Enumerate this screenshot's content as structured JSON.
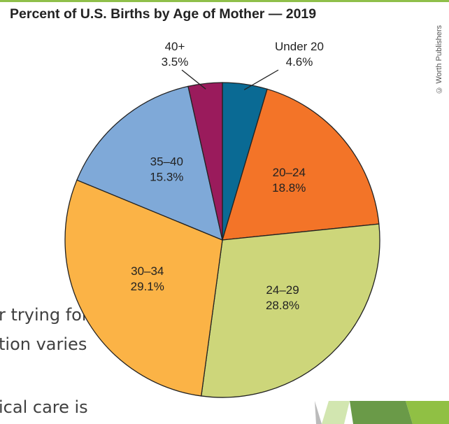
{
  "slide_text": [
    "r trying for",
    "tion varies",
    "ical care is"
  ],
  "credit": "© Worth Publishers",
  "chart_data": {
    "type": "pie",
    "title": "Percent of U.S. Births by Age of Mother — 2019",
    "start": "12 o'clock, clockwise",
    "slices": [
      {
        "label": "Under 20",
        "value": 4.6,
        "value_label": "4.6%",
        "color": "#0a6a94"
      },
      {
        "label": "20–24",
        "value": 18.8,
        "value_label": "18.8%",
        "color": "#f37428"
      },
      {
        "label": "24–29",
        "value": 28.8,
        "value_label": "28.8%",
        "color": "#cdd67a"
      },
      {
        "label": "30–34",
        "value": 29.1,
        "value_label": "29.1%",
        "color": "#fbb346"
      },
      {
        "label": "35–40",
        "value": 15.3,
        "value_label": "15.3%",
        "color": "#7fa9d8"
      },
      {
        "label": "40+",
        "value": 3.5,
        "value_label": "3.5%",
        "color": "#9a1b5c"
      }
    ]
  }
}
